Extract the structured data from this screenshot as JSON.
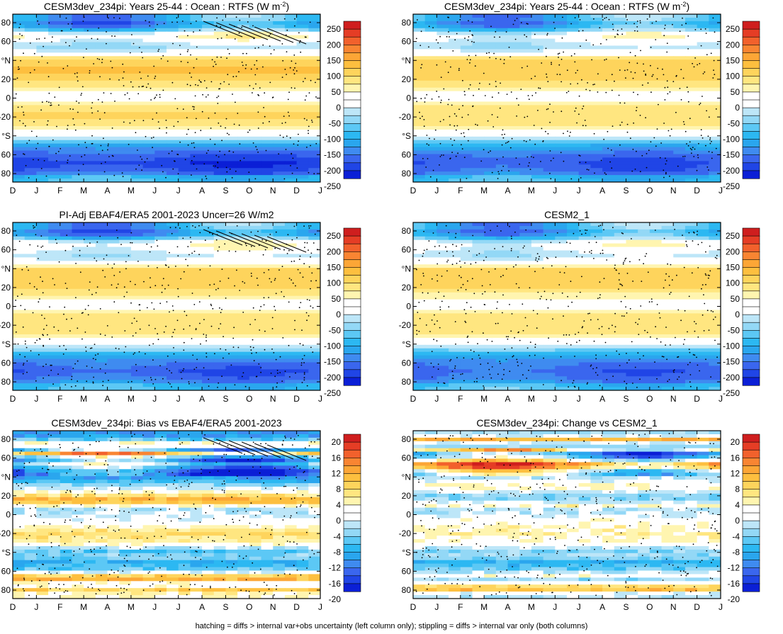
{
  "footer": "hatching = diffs > internal var+obs uncertainty (left column only); stippling = diffs > internal var only (both columns)",
  "colors": {
    "clim_scale": [
      "#0b1fd6",
      "#2045e6",
      "#3a66ee",
      "#3f8bf0",
      "#2aa6ee",
      "#2cb8f2",
      "#5cc8f5",
      "#93d8f6",
      "#bde6f8",
      "#ffffff",
      "#ffffff",
      "#fff5b0",
      "#ffe680",
      "#fed45c",
      "#fdbf3f",
      "#fca636",
      "#f98532",
      "#f2612c",
      "#e53d25",
      "#cf1e1e"
    ],
    "diff_scale": [
      "#0b1fd6",
      "#2045e6",
      "#3a66ee",
      "#3f8bf0",
      "#2aa6ee",
      "#2cb8f2",
      "#5cc8f5",
      "#93d8f6",
      "#bde6f8",
      "#ffffff",
      "#ffffff",
      "#fff5b0",
      "#ffe680",
      "#fed45c",
      "#fdbf3f",
      "#fca636",
      "#f98532",
      "#f2612c",
      "#e53d25",
      "#cf1e1e"
    ]
  },
  "chart_data": [
    {
      "type": "heatmap",
      "title": "CESM3dev_234pi: Years 25-44 : Ocean : RTFS (W m",
      "title_sup": "-2",
      "title_end": ")",
      "x_tick_labels": [
        "D",
        "J",
        "F",
        "M",
        "A",
        "M",
        "J",
        "J",
        "A",
        "S",
        "O",
        "N",
        "D",
        "J"
      ],
      "y_tick_labels": [
        "80",
        "60",
        "°N",
        "20",
        "0",
        "-20",
        "°S",
        "60",
        "80"
      ],
      "colorbar_labels": [
        "250",
        "200",
        "150",
        "100",
        "50",
        "0",
        "-50",
        "-100",
        "-150",
        "-200",
        "-250"
      ],
      "scale": "clim",
      "hatching": true,
      "stippling": true,
      "lat_profile": [
        [
          -85,
          -110
        ],
        [
          -80,
          -190
        ],
        [
          -70,
          -220
        ],
        [
          -60,
          -190
        ],
        [
          -50,
          -130
        ],
        [
          -45,
          -60
        ],
        [
          -40,
          -10
        ],
        [
          -30,
          60
        ],
        [
          -20,
          80
        ],
        [
          -10,
          65
        ],
        [
          0,
          15
        ],
        [
          5,
          -10
        ],
        [
          10,
          40
        ],
        [
          20,
          90
        ],
        [
          30,
          110
        ],
        [
          40,
          90
        ],
        [
          45,
          30
        ],
        [
          50,
          -20
        ],
        [
          55,
          -50
        ],
        [
          60,
          -20
        ],
        [
          65,
          20
        ],
        [
          70,
          -10
        ],
        [
          75,
          -120
        ],
        [
          80,
          -150
        ],
        [
          85,
          -120
        ]
      ]
    },
    {
      "type": "heatmap",
      "title": "CESM3dev_234pi: Years 25-44 : Ocean : RTFS (W m",
      "title_sup": "-2",
      "title_end": ")",
      "x_tick_labels": [
        "D",
        "J",
        "F",
        "M",
        "A",
        "M",
        "J",
        "J",
        "A",
        "S",
        "O",
        "N",
        "D",
        "J"
      ],
      "y_tick_labels": [
        "80",
        "60",
        "°N",
        "20",
        "0",
        "-20",
        "°S",
        "60",
        "80"
      ],
      "colorbar_labels": [
        "250",
        "200",
        "150",
        "100",
        "50",
        "0",
        "-50",
        "-100",
        "-150",
        "-200",
        "-250"
      ],
      "scale": "clim",
      "hatching": false,
      "stippling": true,
      "lat_profile": [
        [
          -85,
          -110
        ],
        [
          -80,
          -180
        ],
        [
          -70,
          -200
        ],
        [
          -60,
          -180
        ],
        [
          -50,
          -120
        ],
        [
          -45,
          -60
        ],
        [
          -40,
          -15
        ],
        [
          -30,
          50
        ],
        [
          -20,
          75
        ],
        [
          -10,
          60
        ],
        [
          0,
          15
        ],
        [
          5,
          -5
        ],
        [
          10,
          35
        ],
        [
          20,
          85
        ],
        [
          30,
          100
        ],
        [
          40,
          85
        ],
        [
          45,
          30
        ],
        [
          50,
          -15
        ],
        [
          55,
          -45
        ],
        [
          60,
          -25
        ],
        [
          65,
          10
        ],
        [
          70,
          -20
        ],
        [
          75,
          -110
        ],
        [
          80,
          -140
        ],
        [
          85,
          -110
        ]
      ]
    },
    {
      "type": "heatmap",
      "title": "PI-Adj EBAF4/ERA5 2001-2023 Uncer=26 W/m2",
      "x_tick_labels": [
        "D",
        "J",
        "F",
        "M",
        "A",
        "M",
        "J",
        "J",
        "A",
        "S",
        "O",
        "N",
        "D",
        "J"
      ],
      "y_tick_labels": [
        "80",
        "60",
        "°N",
        "20",
        "0",
        "-20",
        "°S",
        "60",
        "80"
      ],
      "colorbar_labels": [
        "250",
        "200",
        "150",
        "100",
        "50",
        "0",
        "-50",
        "-100",
        "-150",
        "-200",
        "-250"
      ],
      "scale": "clim",
      "hatching": true,
      "stippling": true,
      "lat_profile": [
        [
          -85,
          -110
        ],
        [
          -80,
          -170
        ],
        [
          -70,
          -200
        ],
        [
          -60,
          -170
        ],
        [
          -50,
          -110
        ],
        [
          -45,
          -50
        ],
        [
          -40,
          -10
        ],
        [
          -30,
          55
        ],
        [
          -20,
          75
        ],
        [
          -10,
          60
        ],
        [
          0,
          15
        ],
        [
          5,
          -10
        ],
        [
          10,
          40
        ],
        [
          20,
          85
        ],
        [
          30,
          100
        ],
        [
          40,
          80
        ],
        [
          45,
          25
        ],
        [
          50,
          -20
        ],
        [
          55,
          -40
        ],
        [
          60,
          -10
        ],
        [
          65,
          15
        ],
        [
          70,
          -15
        ],
        [
          75,
          -130
        ],
        [
          80,
          -160
        ],
        [
          85,
          -120
        ]
      ]
    },
    {
      "type": "heatmap",
      "title": "CESM2_1",
      "x_tick_labels": [
        "D",
        "J",
        "F",
        "M",
        "A",
        "M",
        "J",
        "J",
        "A",
        "S",
        "O",
        "N",
        "D",
        "J"
      ],
      "y_tick_labels": [
        "80",
        "60",
        "°N",
        "20",
        "0",
        "-20",
        "°S",
        "60",
        "80"
      ],
      "colorbar_labels": [
        "250",
        "200",
        "150",
        "100",
        "50",
        "0",
        "-50",
        "-100",
        "-150",
        "-200",
        "-250"
      ],
      "scale": "clim",
      "hatching": false,
      "stippling": true,
      "lat_profile": [
        [
          -85,
          -100
        ],
        [
          -80,
          -170
        ],
        [
          -70,
          -190
        ],
        [
          -60,
          -170
        ],
        [
          -50,
          -110
        ],
        [
          -45,
          -55
        ],
        [
          -40,
          -10
        ],
        [
          -30,
          50
        ],
        [
          -20,
          70
        ],
        [
          -10,
          55
        ],
        [
          0,
          15
        ],
        [
          5,
          -5
        ],
        [
          10,
          35
        ],
        [
          20,
          80
        ],
        [
          30,
          95
        ],
        [
          40,
          80
        ],
        [
          45,
          25
        ],
        [
          50,
          -15
        ],
        [
          55,
          -40
        ],
        [
          60,
          -20
        ],
        [
          65,
          10
        ],
        [
          70,
          -20
        ],
        [
          75,
          -110
        ],
        [
          80,
          -140
        ],
        [
          85,
          -110
        ]
      ]
    },
    {
      "type": "heatmap",
      "title": "CESM3dev_234pi: Bias vs EBAF4/ERA5 2001-2023",
      "x_tick_labels": [
        "D",
        "J",
        "F",
        "M",
        "A",
        "M",
        "J",
        "J",
        "A",
        "S",
        "O",
        "N",
        "D",
        "J"
      ],
      "y_tick_labels": [
        "80",
        "60",
        "°N",
        "20",
        "0",
        "-20",
        "°S",
        "60",
        "80"
      ],
      "colorbar_labels": [
        "20",
        "16",
        "12",
        "8",
        "4",
        "0",
        "-4",
        "-8",
        "-12",
        "-16",
        "-20"
      ],
      "scale": "diff",
      "hatching": true,
      "stippling": true,
      "lat_profile": [
        [
          -85,
          2
        ],
        [
          -80,
          8
        ],
        [
          -75,
          -4
        ],
        [
          -70,
          10
        ],
        [
          -65,
          6
        ],
        [
          -60,
          -6
        ],
        [
          -50,
          -10
        ],
        [
          -45,
          -4
        ],
        [
          -40,
          -8
        ],
        [
          -30,
          3
        ],
        [
          -20,
          6
        ],
        [
          -10,
          0
        ],
        [
          0,
          -2
        ],
        [
          5,
          -4
        ],
        [
          10,
          2
        ],
        [
          15,
          12
        ],
        [
          20,
          6
        ],
        [
          30,
          -4
        ],
        [
          40,
          -12
        ],
        [
          45,
          -16
        ],
        [
          50,
          -10
        ],
        [
          55,
          -4
        ],
        [
          60,
          -14
        ],
        [
          65,
          10
        ],
        [
          70,
          -10
        ],
        [
          75,
          6
        ],
        [
          80,
          -6
        ],
        [
          85,
          -12
        ]
      ]
    },
    {
      "type": "heatmap",
      "title": "CESM3dev_234pi: Change vs CESM2_1",
      "x_tick_labels": [
        "D",
        "J",
        "F",
        "M",
        "A",
        "M",
        "J",
        "J",
        "A",
        "S",
        "O",
        "N",
        "D",
        "J"
      ],
      "y_tick_labels": [
        "80",
        "60",
        "°N",
        "20",
        "0",
        "-20",
        "°S",
        "60",
        "80"
      ],
      "colorbar_labels": [
        "20",
        "16",
        "12",
        "8",
        "4",
        "0",
        "-4",
        "-8",
        "-12",
        "-16",
        "-20"
      ],
      "scale": "diff",
      "hatching": false,
      "stippling": true,
      "lat_profile": [
        [
          -85,
          -3
        ],
        [
          -80,
          10
        ],
        [
          -75,
          3
        ],
        [
          -70,
          -5
        ],
        [
          -65,
          2
        ],
        [
          -60,
          -6
        ],
        [
          -50,
          -10
        ],
        [
          -45,
          -3
        ],
        [
          -40,
          -6
        ],
        [
          -30,
          1
        ],
        [
          -20,
          3
        ],
        [
          -10,
          2
        ],
        [
          0,
          -2
        ],
        [
          5,
          -4
        ],
        [
          10,
          3
        ],
        [
          15,
          -5
        ],
        [
          20,
          -6
        ],
        [
          30,
          3
        ],
        [
          40,
          -3
        ],
        [
          45,
          -4
        ],
        [
          50,
          8
        ],
        [
          55,
          12
        ],
        [
          60,
          -4
        ],
        [
          65,
          -12
        ],
        [
          70,
          6
        ],
        [
          75,
          -10
        ],
        [
          80,
          12
        ],
        [
          85,
          -4
        ]
      ]
    }
  ]
}
